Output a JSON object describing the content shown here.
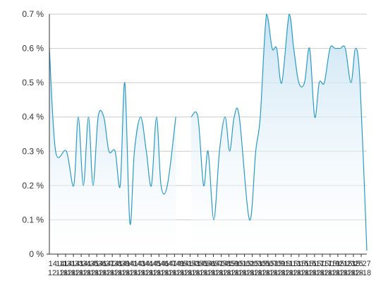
{
  "chart_data": {
    "type": "area",
    "title": "",
    "xlabel": "",
    "ylabel": "",
    "ylim": [
      0,
      0.7
    ],
    "yticks": [
      {
        "value": 0,
        "label": "0 %"
      },
      {
        "value": 0.1,
        "label": "0.1 %"
      },
      {
        "value": 0.2,
        "label": "0.2 %"
      },
      {
        "value": 0.3,
        "label": "0.3 %"
      },
      {
        "value": 0.4,
        "label": "0.4 %"
      },
      {
        "value": 0.5,
        "label": "0.5 %"
      },
      {
        "value": 0.6,
        "label": "0.6 %"
      },
      {
        "value": 0.7,
        "label": "0.7 %"
      }
    ],
    "grid": true,
    "legend": "none",
    "colors": {
      "line": "#2a9bc8",
      "fill_top": "#c6e2f3",
      "fill_bottom": "#ffffff",
      "grid": "#cccccc",
      "axis": "#333333",
      "text": "#333333"
    },
    "x_tick_labels": [
      {
        "top": "14:11",
        "bottom": "12-18"
      },
      {
        "top": "14:31",
        "bottom": "12-18"
      },
      {
        "top": "14:33",
        "bottom": "12-18"
      },
      {
        "top": "14:34",
        "bottom": "12-18"
      },
      {
        "top": "14:35",
        "bottom": "12-18"
      },
      {
        "top": "14:36",
        "bottom": "12-18"
      },
      {
        "top": "14:37",
        "bottom": "12-18"
      },
      {
        "top": "14:38",
        "bottom": "12-18"
      },
      {
        "top": "14:39",
        "bottom": "12-18"
      },
      {
        "top": "14:41",
        "bottom": "12-18"
      },
      {
        "top": "14:43",
        "bottom": "12-18"
      },
      {
        "top": "14:44",
        "bottom": "12-18"
      },
      {
        "top": "14:45",
        "bottom": "12-18"
      },
      {
        "top": "14:46",
        "bottom": "12-18"
      },
      {
        "top": "14:47",
        "bottom": "12-18"
      },
      {
        "top": "14:49",
        "bottom": "12-18"
      },
      {
        "top": "14:51",
        "bottom": "12-18"
      },
      {
        "top": "14:53",
        "bottom": "12-18"
      },
      {
        "top": "14:55",
        "bottom": "12-18"
      },
      {
        "top": "14:56",
        "bottom": "12-18"
      },
      {
        "top": "14:57",
        "bottom": "12-18"
      },
      {
        "top": "14:58",
        "bottom": "12-18"
      },
      {
        "top": "14:59",
        "bottom": "12-18"
      },
      {
        "top": "15:01",
        "bottom": "12-18"
      },
      {
        "top": "15:02",
        "bottom": "12-18"
      },
      {
        "top": "15:03",
        "bottom": "12-18"
      },
      {
        "top": "15:05",
        "bottom": "12-18"
      },
      {
        "top": "15:07",
        "bottom": "12-18"
      },
      {
        "top": "15:09",
        "bottom": "12-18"
      },
      {
        "top": "15:11",
        "bottom": "12-18"
      },
      {
        "top": "15:13",
        "bottom": "12-18"
      },
      {
        "top": "15:15",
        "bottom": "12-18"
      },
      {
        "top": "15:15",
        "bottom": "12-18"
      },
      {
        "top": "15:17",
        "bottom": "12-18"
      },
      {
        "top": "15:17",
        "bottom": "12-18"
      },
      {
        "top": "15:19",
        "bottom": "12-18"
      },
      {
        "top": "15:21",
        "bottom": "12-18"
      },
      {
        "top": "15:23",
        "bottom": "12-18"
      },
      {
        "top": "15:25",
        "bottom": "12-18"
      },
      {
        "top": "15:27",
        "bottom": "12-18"
      }
    ],
    "series": [
      {
        "segments": [
          [
            {
              "x": 0,
              "y": 0.6
            },
            {
              "x": 1.1,
              "y": 0.3
            },
            {
              "x": 3,
              "y": 0.3
            },
            {
              "x": 4.3,
              "y": 0.2
            },
            {
              "x": 5.1,
              "y": 0.4
            },
            {
              "x": 6.0,
              "y": 0.2
            },
            {
              "x": 6.9,
              "y": 0.4
            },
            {
              "x": 7.7,
              "y": 0.2
            },
            {
              "x": 8.6,
              "y": 0.4
            },
            {
              "x": 9.6,
              "y": 0.4
            },
            {
              "x": 10.5,
              "y": 0.3
            },
            {
              "x": 11.6,
              "y": 0.3
            },
            {
              "x": 12.5,
              "y": 0.2
            },
            {
              "x": 13.3,
              "y": 0.5
            },
            {
              "x": 14.2,
              "y": 0.09
            },
            {
              "x": 15.0,
              "y": 0.3
            },
            {
              "x": 16.1,
              "y": 0.4
            },
            {
              "x": 17.1,
              "y": 0.3
            },
            {
              "x": 18.0,
              "y": 0.2
            },
            {
              "x": 18.9,
              "y": 0.4
            },
            {
              "x": 19.7,
              "y": 0.2
            },
            {
              "x": 20.8,
              "y": 0.2
            },
            {
              "x": 22.3,
              "y": 0.4
            }
          ],
          [
            {
              "x": 25.0,
              "y": 0.4
            },
            {
              "x": 26.2,
              "y": 0.4
            },
            {
              "x": 27.2,
              "y": 0.2
            },
            {
              "x": 28.0,
              "y": 0.3
            },
            {
              "x": 29.0,
              "y": 0.1
            },
            {
              "x": 30.0,
              "y": 0.3
            },
            {
              "x": 31.0,
              "y": 0.4
            },
            {
              "x": 31.8,
              "y": 0.3
            },
            {
              "x": 32.6,
              "y": 0.4
            },
            {
              "x": 33.5,
              "y": 0.4
            },
            {
              "x": 35.3,
              "y": 0.1
            },
            {
              "x": 36.4,
              "y": 0.3
            },
            {
              "x": 37.2,
              "y": 0.4
            },
            {
              "x": 38.3,
              "y": 0.7
            },
            {
              "x": 39.3,
              "y": 0.6
            },
            {
              "x": 40.1,
              "y": 0.6
            },
            {
              "x": 41.0,
              "y": 0.5
            },
            {
              "x": 42.3,
              "y": 0.7
            },
            {
              "x": 43.1,
              "y": 0.6
            },
            {
              "x": 44.0,
              "y": 0.5
            },
            {
              "x": 45.0,
              "y": 0.5
            },
            {
              "x": 45.9,
              "y": 0.6
            },
            {
              "x": 46.8,
              "y": 0.4
            },
            {
              "x": 47.6,
              "y": 0.5
            },
            {
              "x": 48.5,
              "y": 0.5
            },
            {
              "x": 49.5,
              "y": 0.6
            },
            {
              "x": 50.4,
              "y": 0.6
            },
            {
              "x": 51.3,
              "y": 0.6
            },
            {
              "x": 52.2,
              "y": 0.6
            },
            {
              "x": 53.2,
              "y": 0.5
            },
            {
              "x": 54.0,
              "y": 0.6
            },
            {
              "x": 54.8,
              "y": 0.5
            },
            {
              "x": 56.0,
              "y": 0.01
            }
          ]
        ]
      }
    ],
    "x_range": [
      0,
      56
    ]
  }
}
